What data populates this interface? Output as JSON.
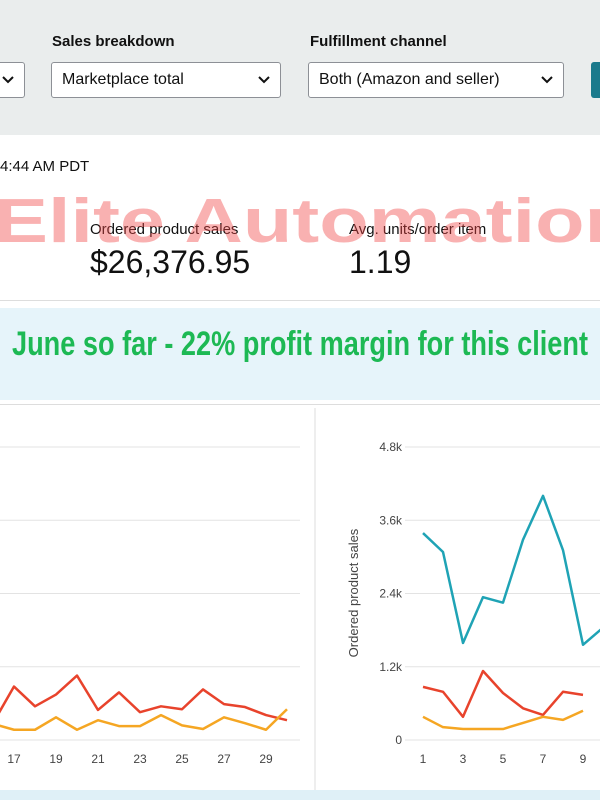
{
  "filters": [
    {
      "label": "Sales breakdown",
      "value": "Marketplace total"
    },
    {
      "label": "Fulfillment channel",
      "value": "Both (Amazon and seller)"
    }
  ],
  "timestamp": "4:44 AM PDT",
  "watermark": "Elite Automation",
  "metrics": [
    {
      "label": "Ordered product sales",
      "value": "$26,376.95"
    },
    {
      "label": "Avg. units/order item",
      "value": "1.19"
    }
  ],
  "banner": "June so far - 22% profit margin for this client",
  "chart_data": [
    {
      "type": "line",
      "x": [
        16,
        17,
        18,
        19,
        20,
        21,
        22,
        23,
        24,
        25,
        26,
        27,
        28,
        29,
        30
      ],
      "xlim": [
        1,
        30
      ],
      "xticks": [
        17,
        19,
        21,
        23,
        25,
        27,
        29
      ],
      "ylim": [
        0,
        4
      ],
      "yticks": [
        0,
        1,
        2,
        3,
        4
      ],
      "grid": true,
      "series": [
        {
          "color": "#e8432c",
          "values": [
            0.23,
            0.73,
            0.46,
            0.62,
            0.88,
            0.41,
            0.65,
            0.38,
            0.46,
            0.42,
            0.69,
            0.49,
            0.45,
            0.34,
            0.27
          ]
        },
        {
          "color": "#f5a623",
          "values": [
            0.22,
            0.14,
            0.14,
            0.31,
            0.14,
            0.27,
            0.19,
            0.19,
            0.34,
            0.2,
            0.15,
            0.31,
            0.23,
            0.14,
            0.42
          ]
        }
      ]
    },
    {
      "type": "line",
      "y_label": "Ordered product sales",
      "x": [
        1,
        2,
        3,
        4,
        5,
        6,
        7,
        8,
        9,
        10
      ],
      "xlim": [
        1,
        30
      ],
      "xticks": [
        1,
        3,
        5,
        7,
        9
      ],
      "ylim": [
        0,
        4800
      ],
      "yticks": [
        0,
        {
          "value": 1200,
          "label": "1.2k"
        },
        {
          "value": 2400,
          "label": "2.4k"
        },
        {
          "value": 3600,
          "label": "3.6k"
        },
        {
          "value": 4800,
          "label": "4.8k"
        }
      ],
      "grid": true,
      "series": [
        {
          "color": "#1fa3b5",
          "values": [
            3390,
            3080,
            1590,
            2340,
            2250,
            3280,
            4000,
            3110,
            1560,
            1840
          ]
        },
        {
          "color": "#e8432c",
          "values": [
            870,
            790,
            380,
            1130,
            770,
            520,
            410,
            790,
            740,
            null
          ]
        },
        {
          "color": "#f5a623",
          "values": [
            380,
            210,
            180,
            180,
            180,
            280,
            380,
            330,
            480,
            null
          ]
        }
      ]
    }
  ]
}
